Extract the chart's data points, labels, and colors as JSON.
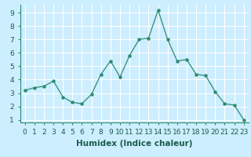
{
  "x": [
    0,
    1,
    2,
    3,
    4,
    5,
    6,
    7,
    8,
    9,
    10,
    11,
    12,
    13,
    14,
    15,
    16,
    17,
    18,
    19,
    20,
    21,
    22,
    23
  ],
  "y": [
    3.2,
    3.4,
    3.5,
    3.9,
    2.7,
    2.3,
    2.2,
    2.9,
    4.4,
    5.4,
    4.2,
    5.8,
    7.0,
    7.1,
    9.2,
    7.0,
    5.4,
    5.5,
    4.4,
    4.3,
    3.1,
    2.2,
    2.1,
    1.0
  ],
  "line_color": "#2d8b72",
  "marker_color": "#2d8b72",
  "bg_color": "#cceeff",
  "grid_color": "#ffffff",
  "xlabel": "Humidex (Indice chaleur)",
  "xlim": [
    -0.5,
    23.5
  ],
  "ylim": [
    0.8,
    9.6
  ],
  "yticks": [
    1,
    2,
    3,
    4,
    5,
    6,
    7,
    8,
    9
  ],
  "xticks": [
    0,
    1,
    2,
    3,
    4,
    5,
    6,
    7,
    8,
    9,
    10,
    11,
    12,
    13,
    14,
    15,
    16,
    17,
    18,
    19,
    20,
    21,
    22,
    23
  ],
  "tick_fontsize": 6.5,
  "xlabel_fontsize": 7.5
}
